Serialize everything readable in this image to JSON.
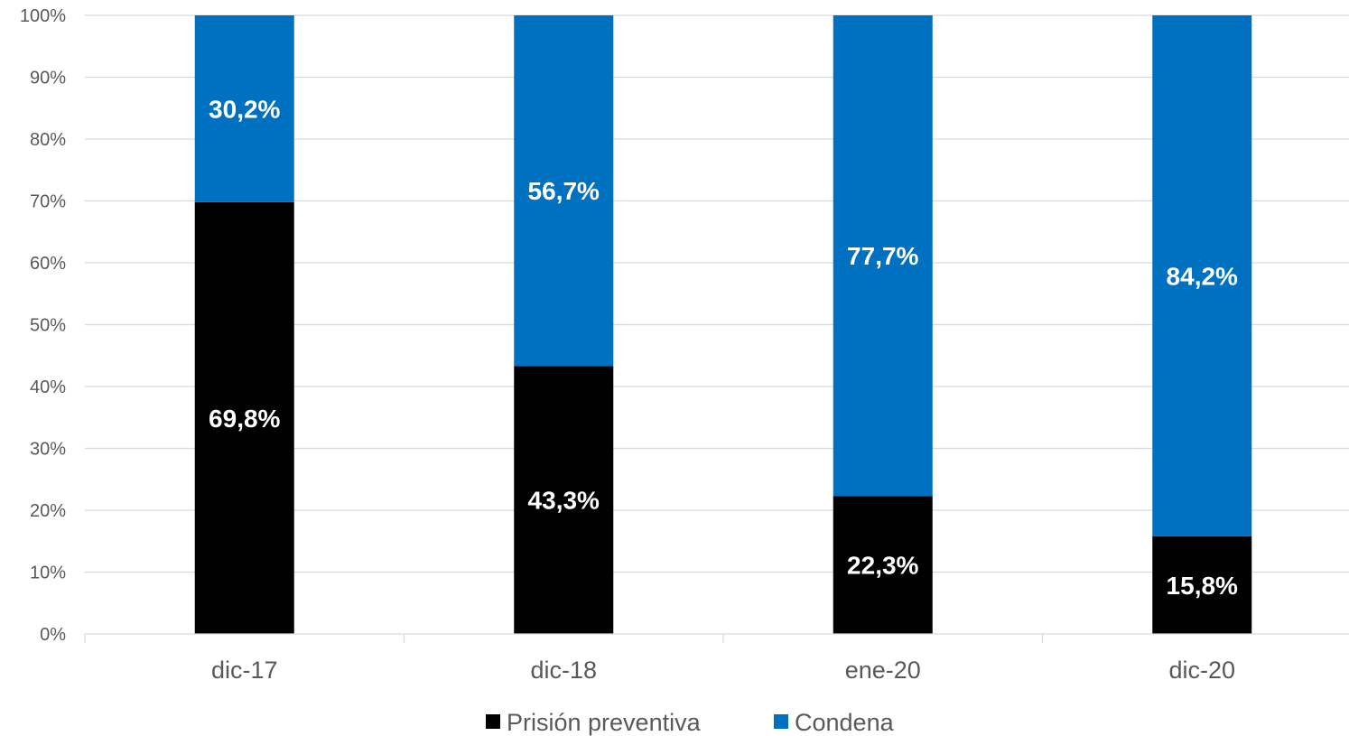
{
  "chart_data": {
    "type": "bar",
    "stacked": true,
    "percent_stacked": true,
    "categories": [
      "dic-17",
      "dic-18",
      "ene-20",
      "dic-20"
    ],
    "series": [
      {
        "name": "Prisión preventiva",
        "color": "#000000",
        "values": [
          69.8,
          43.3,
          22.3,
          15.8
        ],
        "labels": [
          "69,8%",
          "43,3%",
          "22,3%",
          "15,8%"
        ]
      },
      {
        "name": "Condena",
        "color": "#0070C0",
        "values": [
          30.2,
          56.7,
          77.7,
          84.2
        ],
        "labels": [
          "30,2%",
          "56,7%",
          "77,7%",
          "84,2%"
        ]
      }
    ],
    "ylim": [
      0,
      100
    ],
    "yticks": [
      "0%",
      "10%",
      "20%",
      "30%",
      "40%",
      "50%",
      "60%",
      "70%",
      "80%",
      "90%",
      "100%"
    ],
    "grid": true,
    "legend_position": "bottom"
  }
}
